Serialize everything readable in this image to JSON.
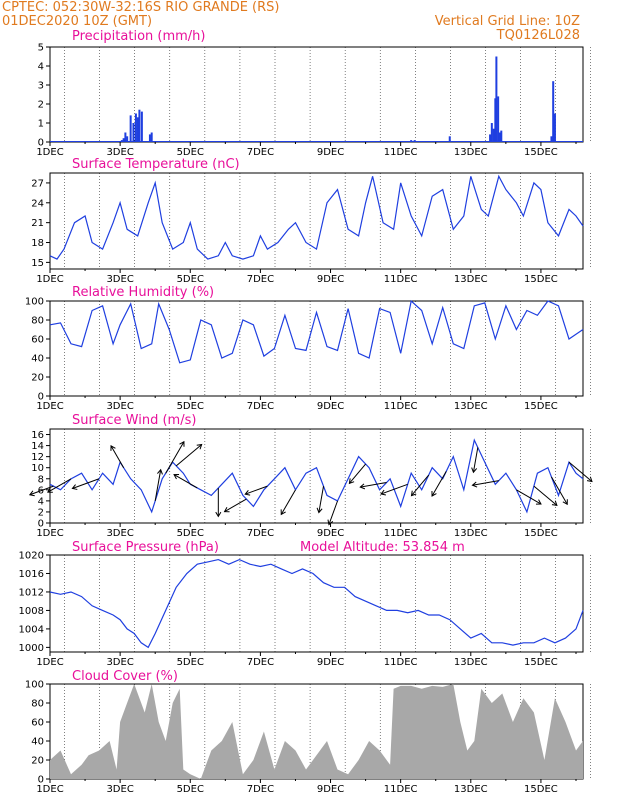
{
  "header": {
    "line1_left": "CPTEC:   052:30W-32:16S  RIO GRANDE (RS)",
    "line2_left": "01DEC2020 10Z (GMT)",
    "line1_right": "Vertical Grid Line: 10Z",
    "line2_right": "TQ0126L028"
  },
  "colors": {
    "header": "#e07a1f",
    "title": "#e8109a",
    "line": "#1f3fe0",
    "cloud": "#a8a8a8",
    "grid": "#000000"
  },
  "x_ticks": [
    "1DEC",
    "3DEC",
    "5DEC",
    "7DEC",
    "9DEC",
    "11DEC",
    "13DEC",
    "15DEC"
  ],
  "chart_data": [
    {
      "type": "bar",
      "title": "Precipitation (mm/h)",
      "ylim": [
        0,
        5
      ],
      "yticks": [
        "0",
        "1",
        "2",
        "3",
        "4",
        "5"
      ],
      "x_days": [
        1,
        16.2
      ],
      "x": [
        3.05,
        3.1,
        3.15,
        3.2,
        3.3,
        3.38,
        3.45,
        3.5,
        3.55,
        3.62,
        3.85,
        3.9,
        11.3,
        11.4,
        12.4,
        13.55,
        13.6,
        13.65,
        13.7,
        13.73,
        13.78,
        13.82,
        13.87,
        15.3,
        15.35,
        15.4
      ],
      "values": [
        0.1,
        0.2,
        0.5,
        0.3,
        1.4,
        1.0,
        1.5,
        1.3,
        1.7,
        1.6,
        0.4,
        0.5,
        0.1,
        0.1,
        0.3,
        0.4,
        1.0,
        0.7,
        2.3,
        4.5,
        2.4,
        0.5,
        0.6,
        0.3,
        3.2,
        1.5
      ]
    },
    {
      "type": "line",
      "title": "Surface Temperature (nC)",
      "ylim": [
        14,
        28.5
      ],
      "yticks": [
        "15",
        "18",
        "21",
        "24",
        "27"
      ],
      "x": [
        1.0,
        1.2,
        1.4,
        1.7,
        2.0,
        2.2,
        2.5,
        2.8,
        3.0,
        3.2,
        3.5,
        3.8,
        4.0,
        4.2,
        4.5,
        4.8,
        5.0,
        5.2,
        5.5,
        5.8,
        6.0,
        6.2,
        6.5,
        6.8,
        7.0,
        7.2,
        7.5,
        7.8,
        8.0,
        8.3,
        8.6,
        8.9,
        9.2,
        9.5,
        9.8,
        10.0,
        10.2,
        10.5,
        10.8,
        11.0,
        11.3,
        11.6,
        11.9,
        12.2,
        12.5,
        12.8,
        13.0,
        13.3,
        13.5,
        13.8,
        14.0,
        14.3,
        14.5,
        14.8,
        15.0,
        15.2,
        15.5,
        15.8,
        16.0,
        16.2
      ],
      "values": [
        16,
        15.5,
        17,
        21,
        22,
        18,
        17,
        21,
        24,
        20,
        19,
        24,
        27,
        21,
        17,
        18,
        21,
        17,
        15.5,
        16,
        18,
        16,
        15.5,
        16,
        19,
        17,
        18,
        20,
        21,
        18,
        17,
        24,
        26,
        20,
        19,
        24,
        28,
        21,
        20,
        27,
        22,
        19,
        25,
        26,
        20,
        22,
        28,
        23,
        22,
        28,
        26,
        24,
        22,
        27,
        26,
        21,
        19,
        23,
        22,
        20.5
      ]
    },
    {
      "type": "line",
      "title": "Relative Humidity (%)",
      "ylim": [
        0,
        100
      ],
      "yticks": [
        "0",
        "20",
        "40",
        "60",
        "80",
        "100"
      ],
      "x": [
        1.0,
        1.3,
        1.6,
        1.9,
        2.2,
        2.5,
        2.8,
        3.0,
        3.3,
        3.6,
        3.9,
        4.1,
        4.4,
        4.7,
        5.0,
        5.3,
        5.6,
        5.9,
        6.2,
        6.5,
        6.8,
        7.1,
        7.4,
        7.7,
        8.0,
        8.3,
        8.6,
        8.9,
        9.2,
        9.5,
        9.8,
        10.1,
        10.4,
        10.7,
        11.0,
        11.3,
        11.6,
        11.9,
        12.2,
        12.5,
        12.8,
        13.1,
        13.4,
        13.7,
        14.0,
        14.3,
        14.6,
        14.9,
        15.2,
        15.5,
        15.8,
        16.0,
        16.2
      ],
      "values": [
        75,
        77,
        55,
        52,
        90,
        95,
        55,
        75,
        97,
        50,
        55,
        97,
        70,
        35,
        38,
        80,
        75,
        40,
        45,
        80,
        75,
        42,
        50,
        85,
        50,
        48,
        88,
        52,
        48,
        92,
        45,
        40,
        92,
        88,
        45,
        100,
        90,
        55,
        93,
        55,
        50,
        95,
        98,
        60,
        95,
        70,
        90,
        85,
        100,
        95,
        60,
        65,
        70
      ]
    },
    {
      "type": "line",
      "title": "Surface Wind (m/s)",
      "ylim": [
        0,
        17
      ],
      "yticks": [
        "0",
        "2",
        "4",
        "6",
        "8",
        "10",
        "12",
        "14",
        "16"
      ],
      "x": [
        1.0,
        1.3,
        1.6,
        1.9,
        2.2,
        2.5,
        2.8,
        3.0,
        3.3,
        3.6,
        3.9,
        4.2,
        4.5,
        4.8,
        5.0,
        5.3,
        5.6,
        5.9,
        6.2,
        6.5,
        6.8,
        7.1,
        7.4,
        7.7,
        8.0,
        8.3,
        8.6,
        8.9,
        9.2,
        9.5,
        9.8,
        10.1,
        10.4,
        10.7,
        11.0,
        11.3,
        11.6,
        11.9,
        12.2,
        12.5,
        12.8,
        13.1,
        13.4,
        13.7,
        14.0,
        14.3,
        14.6,
        14.9,
        15.2,
        15.5,
        15.8,
        16.0,
        16.2
      ],
      "values": [
        7,
        6,
        8,
        9,
        6,
        9,
        7,
        11,
        8,
        6,
        2,
        8,
        11,
        9,
        7,
        6,
        5,
        7,
        9,
        5,
        3,
        6,
        8,
        10,
        6,
        9,
        10,
        5,
        4,
        8,
        12,
        10,
        6,
        8,
        3,
        9,
        6,
        10,
        8,
        12,
        6,
        15,
        11,
        7,
        9,
        6,
        2,
        9,
        10,
        5,
        11,
        9,
        8
      ],
      "arrows": [
        {
          "x": 1.1,
          "dir_deg": 200,
          "speed": 7
        },
        {
          "x": 1.6,
          "dir_deg": 210,
          "speed": 8
        },
        {
          "x": 2.4,
          "dir_deg": 200,
          "speed": 9
        },
        {
          "x": 3.1,
          "dir_deg": 120,
          "speed": 7
        },
        {
          "x": 4.0,
          "dir_deg": 80,
          "speed": 11
        },
        {
          "x": 4.3,
          "dir_deg": 60,
          "speed": 14
        },
        {
          "x": 4.6,
          "dir_deg": 40,
          "speed": 12
        },
        {
          "x": 5.2,
          "dir_deg": 150,
          "speed": 8
        },
        {
          "x": 5.8,
          "dir_deg": 270,
          "speed": 9
        },
        {
          "x": 6.6,
          "dir_deg": 210,
          "speed": 7
        },
        {
          "x": 7.2,
          "dir_deg": 200,
          "speed": 6
        },
        {
          "x": 8.0,
          "dir_deg": 240,
          "speed": 9
        },
        {
          "x": 8.8,
          "dir_deg": 260,
          "speed": 8
        },
        {
          "x": 9.2,
          "dir_deg": 250,
          "speed": 7
        },
        {
          "x": 10.0,
          "dir_deg": 230,
          "speed": 7
        },
        {
          "x": 10.6,
          "dir_deg": 190,
          "speed": 8
        },
        {
          "x": 11.2,
          "dir_deg": 200,
          "speed": 9
        },
        {
          "x": 11.8,
          "dir_deg": 230,
          "speed": 8
        },
        {
          "x": 12.3,
          "dir_deg": 240,
          "speed": 9
        },
        {
          "x": 13.2,
          "dir_deg": 260,
          "speed": 7
        },
        {
          "x": 13.8,
          "dir_deg": 190,
          "speed": 8
        },
        {
          "x": 14.3,
          "dir_deg": 330,
          "speed": 9
        },
        {
          "x": 14.8,
          "dir_deg": 320,
          "speed": 10
        },
        {
          "x": 15.3,
          "dir_deg": 300,
          "speed": 11
        },
        {
          "x": 15.8,
          "dir_deg": 320,
          "speed": 10
        }
      ]
    },
    {
      "type": "line",
      "title": "Surface Pressure (hPa)",
      "annotation": "Model Altitude: 53.854 m",
      "ylim": [
        999,
        1020
      ],
      "yticks": [
        "1000",
        "1004",
        "1008",
        "1012",
        "1016",
        "1020"
      ],
      "x": [
        1.0,
        1.3,
        1.6,
        1.9,
        2.2,
        2.5,
        2.8,
        3.0,
        3.2,
        3.4,
        3.6,
        3.8,
        4.0,
        4.3,
        4.6,
        4.9,
        5.2,
        5.5,
        5.8,
        6.1,
        6.4,
        6.7,
        7.0,
        7.3,
        7.6,
        7.9,
        8.2,
        8.5,
        8.8,
        9.1,
        9.4,
        9.7,
        10.0,
        10.3,
        10.6,
        10.9,
        11.2,
        11.5,
        11.8,
        12.1,
        12.4,
        12.7,
        13.0,
        13.3,
        13.6,
        13.9,
        14.2,
        14.5,
        14.8,
        15.1,
        15.4,
        15.7,
        16.0,
        16.2
      ],
      "values": [
        1012,
        1011.5,
        1012,
        1011,
        1009,
        1008,
        1007,
        1006,
        1004,
        1003,
        1001,
        1000,
        1003,
        1008,
        1013,
        1016,
        1018,
        1018.5,
        1019,
        1018,
        1019,
        1018,
        1017.5,
        1018,
        1017,
        1016,
        1017,
        1016,
        1014,
        1013,
        1013,
        1011,
        1010,
        1009,
        1008,
        1008,
        1007.5,
        1008,
        1007,
        1007,
        1006,
        1004,
        1002,
        1003,
        1001,
        1001,
        1000.5,
        1001,
        1001,
        1002,
        1001,
        1002,
        1004,
        1008
      ]
    },
    {
      "type": "area",
      "title": "Cloud Cover (%)",
      "ylim": [
        0,
        100
      ],
      "yticks": [
        "0",
        "20",
        "40",
        "60",
        "80",
        "100"
      ],
      "x": [
        1.0,
        1.3,
        1.6,
        1.9,
        2.1,
        2.4,
        2.7,
        2.9,
        3.0,
        3.2,
        3.4,
        3.7,
        3.9,
        4.1,
        4.3,
        4.5,
        4.7,
        4.8,
        5.0,
        5.3,
        5.6,
        5.9,
        6.2,
        6.5,
        6.8,
        7.1,
        7.4,
        7.7,
        8.0,
        8.3,
        8.6,
        8.9,
        9.2,
        9.5,
        9.8,
        10.1,
        10.4,
        10.7,
        10.8,
        11.0,
        11.3,
        11.6,
        11.9,
        12.2,
        12.5,
        12.7,
        12.9,
        13.1,
        13.3,
        13.6,
        13.9,
        14.2,
        14.5,
        14.8,
        15.1,
        15.4,
        15.7,
        16.0,
        16.2
      ],
      "values": [
        20,
        30,
        5,
        15,
        25,
        30,
        40,
        10,
        60,
        80,
        100,
        70,
        100,
        60,
        40,
        80,
        95,
        10,
        5,
        0,
        30,
        40,
        60,
        5,
        20,
        50,
        10,
        40,
        30,
        10,
        25,
        40,
        10,
        5,
        20,
        40,
        30,
        15,
        95,
        98,
        98,
        95,
        98,
        97,
        100,
        60,
        30,
        40,
        95,
        80,
        90,
        60,
        85,
        70,
        20,
        85,
        60,
        30,
        40
      ]
    }
  ]
}
